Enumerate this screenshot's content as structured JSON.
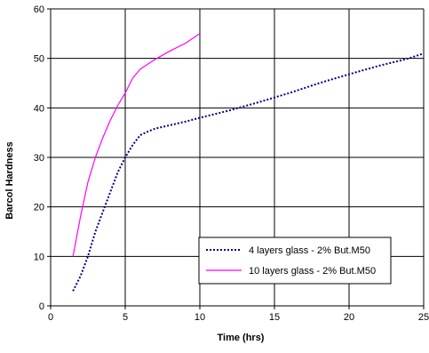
{
  "chart_data": {
    "type": "line",
    "title": "",
    "xlabel": "Time (hrs)",
    "ylabel": "Barcol Hardness",
    "xlim": [
      0,
      25
    ],
    "ylim": [
      0,
      60
    ],
    "xticks": [
      0,
      5,
      10,
      15,
      20,
      25
    ],
    "yticks": [
      0,
      10,
      20,
      30,
      40,
      50,
      60
    ],
    "grid": true,
    "legend_position": "bottom-right",
    "series": [
      {
        "name": "4 layers glass - 2% But.M50",
        "color": "#000080",
        "style": "dotted",
        "x": [
          1.5,
          2,
          2.5,
          3,
          3.5,
          4,
          4.5,
          5,
          5.5,
          6,
          6.5,
          7,
          8,
          9,
          10,
          12,
          14,
          16,
          18,
          20,
          22,
          24,
          25
        ],
        "y": [
          3,
          6,
          10,
          15,
          19,
          23,
          27,
          30,
          32.5,
          34.5,
          35.2,
          35.8,
          36.5,
          37.2,
          38,
          39.5,
          41.2,
          43,
          45,
          46.8,
          48.5,
          50,
          51
        ]
      },
      {
        "name": "10 layers glass - 2% But.M50",
        "color": "#FF00FF",
        "style": "solid",
        "x": [
          1.5,
          2,
          2.5,
          3,
          3.5,
          4,
          4.5,
          5,
          5.5,
          6,
          6.5,
          7,
          8,
          9,
          10
        ],
        "y": [
          10,
          18,
          25,
          30,
          34,
          37.5,
          40.5,
          43,
          46,
          47.8,
          48.8,
          49.8,
          51.5,
          53,
          55
        ]
      }
    ]
  }
}
